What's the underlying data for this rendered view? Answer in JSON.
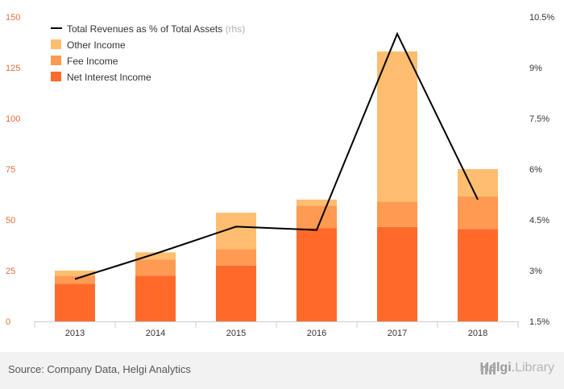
{
  "chart_data": {
    "type": "bar",
    "stacked": true,
    "categories": [
      "2013",
      "2014",
      "2015",
      "2016",
      "2017",
      "2018"
    ],
    "series": [
      {
        "name": "Net Interest Income",
        "values": [
          18.5,
          22.5,
          27.5,
          46,
          46.5,
          45.5
        ],
        "color": "#ff6a2b"
      },
      {
        "name": "Fee Income",
        "values": [
          4,
          8,
          8,
          11,
          12.5,
          16
        ],
        "color": "#ff9a52"
      },
      {
        "name": "Other Income",
        "values": [
          2.5,
          3.5,
          18,
          3,
          74,
          13.5
        ],
        "color": "#ffbd70"
      }
    ],
    "line_series": {
      "name": "Total Revenues as % of Total Assets",
      "name_suffix": "(rhs)",
      "values": [
        2.75,
        3.5,
        4.3,
        4.2,
        10.0,
        5.1
      ],
      "color": "#000000"
    },
    "y_left": {
      "min": 0,
      "max": 150,
      "ticks": [
        0,
        25,
        50,
        75,
        100,
        125,
        150
      ],
      "tick_labels": [
        "0",
        "25",
        "50",
        "75",
        "100",
        "125",
        "150"
      ],
      "color": "#e2703a"
    },
    "y_right": {
      "min": 1.5,
      "max": 10.5,
      "ticks": [
        1.5,
        3,
        4.5,
        6,
        7.5,
        9,
        10.5
      ],
      "tick_labels": [
        "1.5%",
        "3%",
        "4.5%",
        "6%",
        "7.5%",
        "9%",
        "10.5%"
      ]
    },
    "legend_placement": "top-left",
    "grid": false
  },
  "footer": {
    "source": "Source: Company Data, Helgi Analytics",
    "brand_name": "Helgi",
    "brand_suffix": "Library"
  },
  "brand_icon": "bar-chart-icon"
}
